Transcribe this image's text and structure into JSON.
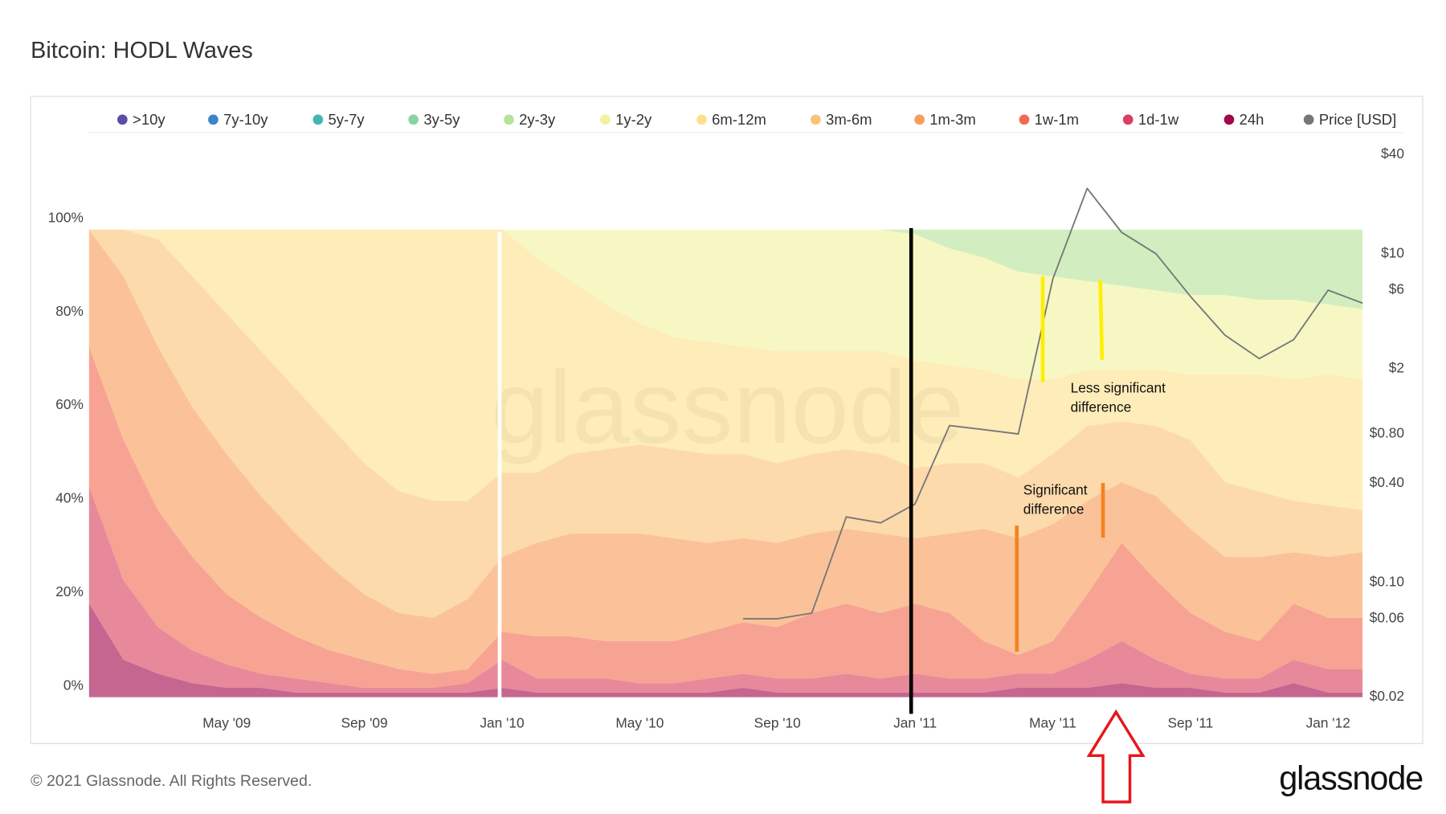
{
  "chart_data": {
    "type": "stacked_area",
    "title": "Bitcoin: HODL Waves",
    "watermark": "glassnode",
    "legend": "top",
    "grid": false,
    "x": [
      "2009-01",
      "2009-02",
      "2009-03",
      "2009-04",
      "2009-05",
      "2009-06",
      "2009-07",
      "2009-08",
      "2009-09",
      "2009-10",
      "2009-11",
      "2009-12",
      "2010-01",
      "2010-02",
      "2010-03",
      "2010-04",
      "2010-05",
      "2010-06",
      "2010-07",
      "2010-08",
      "2010-09",
      "2010-10",
      "2010-11",
      "2010-12",
      "2011-01",
      "2011-02",
      "2011-03",
      "2011-04",
      "2011-05",
      "2011-06",
      "2011-07",
      "2011-08",
      "2011-09",
      "2011-10",
      "2011-11",
      "2011-12",
      "2012-01",
      "2012-02"
    ],
    "xlim": [
      "2009-01",
      "2012-02"
    ],
    "xticks": [
      {
        "value": "2009-05",
        "label": "May '09"
      },
      {
        "value": "2009-09",
        "label": "Sep '09"
      },
      {
        "value": "2010-01",
        "label": "Jan '10"
      },
      {
        "value": "2010-05",
        "label": "May '10"
      },
      {
        "value": "2010-09",
        "label": "Sep '10"
      },
      {
        "value": "2011-01",
        "label": "Jan '11"
      },
      {
        "value": "2011-05",
        "label": "May '11"
      },
      {
        "value": "2011-09",
        "label": "Sep '11"
      },
      {
        "value": "2012-01",
        "label": "Jan '12"
      }
    ],
    "ylim": [
      0,
      116
    ],
    "yticks": [
      {
        "value": 0,
        "label": "0%"
      },
      {
        "value": 20,
        "label": "20%"
      },
      {
        "value": 40,
        "label": "40%"
      },
      {
        "value": 60,
        "label": "60%"
      },
      {
        "value": 80,
        "label": "80%"
      },
      {
        "value": 100,
        "label": "100%"
      }
    ],
    "y2lim": [
      0.02,
      40
    ],
    "y2scale": "log",
    "y2ticks": [
      {
        "value": 0.02,
        "label": "$0.02"
      },
      {
        "value": 0.06,
        "label": "$0.06"
      },
      {
        "value": 0.1,
        "label": "$0.10"
      },
      {
        "value": 0.4,
        "label": "$0.40"
      },
      {
        "value": 0.8,
        "label": "$0.80"
      },
      {
        "value": 2,
        "label": "$2"
      },
      {
        "value": 6,
        "label": "$6"
      },
      {
        "value": 10,
        "label": "$10"
      },
      {
        "value": 40,
        "label": "$40"
      }
    ],
    "series": [
      {
        "name": ">10y",
        "color": "#5b4ea8",
        "values": [
          0,
          0,
          0,
          0,
          0,
          0,
          0,
          0,
          0,
          0,
          0,
          0,
          0,
          0,
          0,
          0,
          0,
          0,
          0,
          0,
          0,
          0,
          0,
          0,
          0,
          0,
          0,
          0,
          0,
          0,
          0,
          0,
          0,
          0,
          0,
          0,
          0,
          0
        ]
      },
      {
        "name": "7y-10y",
        "color": "#3a86c8",
        "values": [
          0,
          0,
          0,
          0,
          0,
          0,
          0,
          0,
          0,
          0,
          0,
          0,
          0,
          0,
          0,
          0,
          0,
          0,
          0,
          0,
          0,
          0,
          0,
          0,
          0,
          0,
          0,
          0,
          0,
          0,
          0,
          0,
          0,
          0,
          0,
          0,
          0,
          0
        ]
      },
      {
        "name": "5y-7y",
        "color": "#40b8b0",
        "values": [
          0,
          0,
          0,
          0,
          0,
          0,
          0,
          0,
          0,
          0,
          0,
          0,
          0,
          0,
          0,
          0,
          0,
          0,
          0,
          0,
          0,
          0,
          0,
          0,
          0,
          0,
          0,
          0,
          0,
          0,
          0,
          0,
          0,
          0,
          0,
          0,
          0,
          0
        ]
      },
      {
        "name": "3y-5y",
        "color": "#88d4a0",
        "values": [
          0,
          0,
          0,
          0,
          0,
          0,
          0,
          0,
          0,
          0,
          0,
          0,
          0,
          0,
          0,
          0,
          0,
          0,
          0,
          0,
          0,
          0,
          0,
          0,
          0,
          0,
          0,
          0,
          0,
          0,
          0,
          0,
          0,
          0,
          0,
          0,
          0,
          0
        ]
      },
      {
        "name": "2y-3y",
        "color": "#b6e39a",
        "values": [
          0,
          0,
          0,
          0,
          0,
          0,
          0,
          0,
          0,
          0,
          0,
          0,
          0,
          0,
          0,
          0,
          0,
          0,
          0,
          0,
          0,
          0,
          0,
          0,
          1,
          4,
          6,
          9,
          10,
          11,
          12,
          13,
          14,
          14,
          15,
          15,
          16,
          17
        ]
      },
      {
        "name": "1y-2y",
        "color": "#f2f2a0",
        "values": [
          0,
          0,
          0,
          0,
          0,
          0,
          0,
          0,
          0,
          0,
          0,
          0,
          0,
          6,
          11,
          16,
          20,
          23,
          24,
          25,
          26,
          26,
          26,
          26,
          27,
          25,
          24,
          23,
          22,
          19,
          18,
          17,
          17,
          17,
          16,
          17,
          15,
          15
        ]
      },
      {
        "name": "6m-12m",
        "color": "#fde08e",
        "values": [
          0,
          0,
          2,
          10,
          18,
          26,
          34,
          42,
          50,
          56,
          58,
          58,
          52,
          46,
          37,
          31,
          26,
          24,
          24,
          23,
          24,
          22,
          21,
          22,
          23,
          21,
          20,
          21,
          16,
          12,
          11,
          12,
          14,
          23,
          25,
          26,
          28,
          28
        ]
      },
      {
        "name": "3m-6m",
        "color": "#fbc378",
        "values": [
          0,
          10,
          23,
          28,
          30,
          31,
          31,
          30,
          28,
          26,
          25,
          21,
          18,
          15,
          17,
          18,
          19,
          19,
          19,
          18,
          17,
          17,
          17,
          17,
          15,
          15,
          14,
          13,
          15,
          16,
          13,
          15,
          19,
          16,
          14,
          11,
          11,
          9
        ]
      },
      {
        "name": "1m-3m",
        "color": "#f89d5a",
        "values": [
          25,
          35,
          35,
          32,
          30,
          26,
          22,
          18,
          14,
          12,
          12,
          15,
          16,
          20,
          22,
          23,
          23,
          22,
          19,
          18,
          18,
          17,
          16,
          17,
          14,
          17,
          24,
          25,
          25,
          20,
          13,
          18,
          18,
          16,
          18,
          11,
          13,
          14
        ]
      },
      {
        "name": "1w-1m",
        "color": "#f26b52",
        "values": [
          30,
          30,
          25,
          20,
          15,
          12,
          9,
          7,
          6,
          4,
          3,
          3,
          6,
          9,
          9,
          8,
          9,
          9,
          10,
          11,
          11,
          14,
          15,
          14,
          15,
          14,
          8,
          4,
          7,
          14,
          21,
          17,
          13,
          10,
          8,
          12,
          11,
          11
        ]
      },
      {
        "name": "1d-1w",
        "color": "#d8415e",
        "values": [
          25,
          17,
          10,
          7,
          5,
          3,
          3,
          2,
          1,
          1,
          1,
          2,
          6,
          3,
          3,
          3,
          2,
          2,
          3,
          3,
          3,
          3,
          4,
          3,
          4,
          3,
          3,
          3,
          3,
          6,
          9,
          6,
          3,
          3,
          3,
          5,
          5,
          5
        ]
      },
      {
        "name": "24h",
        "color": "#a0084a",
        "values": [
          20,
          8,
          5,
          3,
          2,
          2,
          1,
          1,
          1,
          1,
          1,
          1,
          2,
          1,
          1,
          1,
          1,
          1,
          1,
          2,
          1,
          1,
          1,
          1,
          1,
          1,
          1,
          2,
          2,
          2,
          3,
          2,
          2,
          1,
          1,
          3,
          1,
          1
        ]
      },
      {
        "name": "Price [USD]",
        "color": "#777777",
        "type": "line",
        "axis": "y2",
        "values": [
          null,
          null,
          null,
          null,
          null,
          null,
          null,
          null,
          null,
          null,
          null,
          null,
          null,
          null,
          null,
          null,
          null,
          null,
          null,
          0.06,
          0.06,
          0.065,
          0.25,
          0.23,
          0.3,
          0.9,
          0.85,
          0.8,
          7,
          25,
          13.5,
          10,
          5.5,
          3.2,
          2.3,
          3,
          6,
          5
        ]
      }
    ],
    "annotations": [
      {
        "lines": [
          "Less significant",
          "difference"
        ]
      },
      {
        "lines": [
          "Significant",
          "difference"
        ]
      }
    ]
  },
  "footer": {
    "copyright": "© 2021 Glassnode. All Rights Reserved.",
    "logo": "glassnode"
  }
}
